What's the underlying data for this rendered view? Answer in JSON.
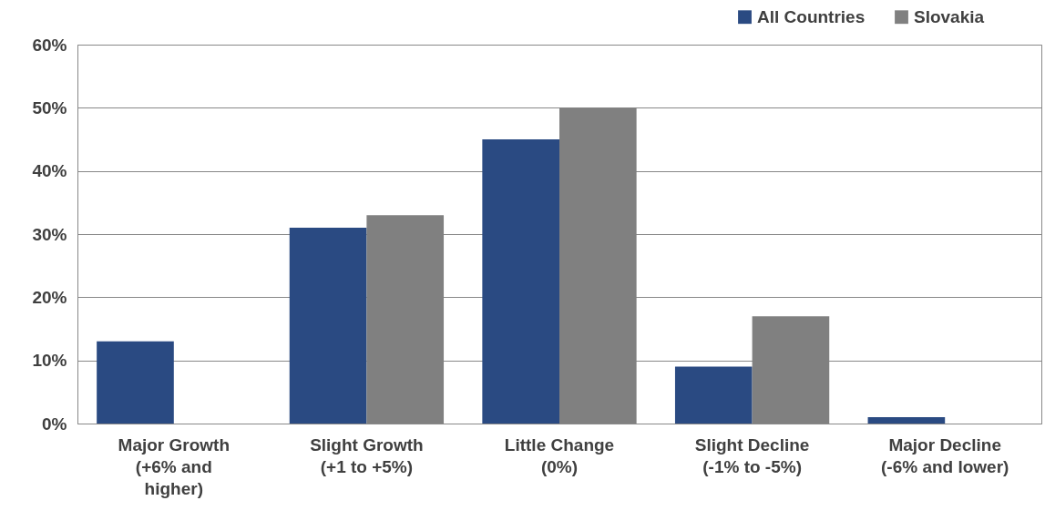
{
  "chart_data": {
    "type": "bar",
    "categories": [
      "Major Growth\n(+6% and\nhigher)",
      "Slight Growth\n(+1 to +5%)",
      "Little Change\n(0%)",
      "Slight Decline\n(-1% to -5%)",
      "Major Decline\n(-6% and lower)"
    ],
    "series": [
      {
        "name": "All Countries",
        "color": "#2a4a82",
        "values": [
          13,
          31,
          45,
          9,
          1
        ]
      },
      {
        "name": "Slovakia",
        "color": "#808080",
        "values": [
          0,
          33,
          50,
          17,
          0
        ]
      }
    ],
    "ylim": [
      0,
      60
    ],
    "yticks": [
      {
        "value": 0,
        "label": "0%"
      },
      {
        "value": 10,
        "label": "10%"
      },
      {
        "value": 20,
        "label": "20%"
      },
      {
        "value": 30,
        "label": "30%"
      },
      {
        "value": 40,
        "label": "40%"
      },
      {
        "value": 50,
        "label": "50%"
      },
      {
        "value": 60,
        "label": "60%"
      }
    ],
    "grid": "y",
    "legend": "top right"
  }
}
